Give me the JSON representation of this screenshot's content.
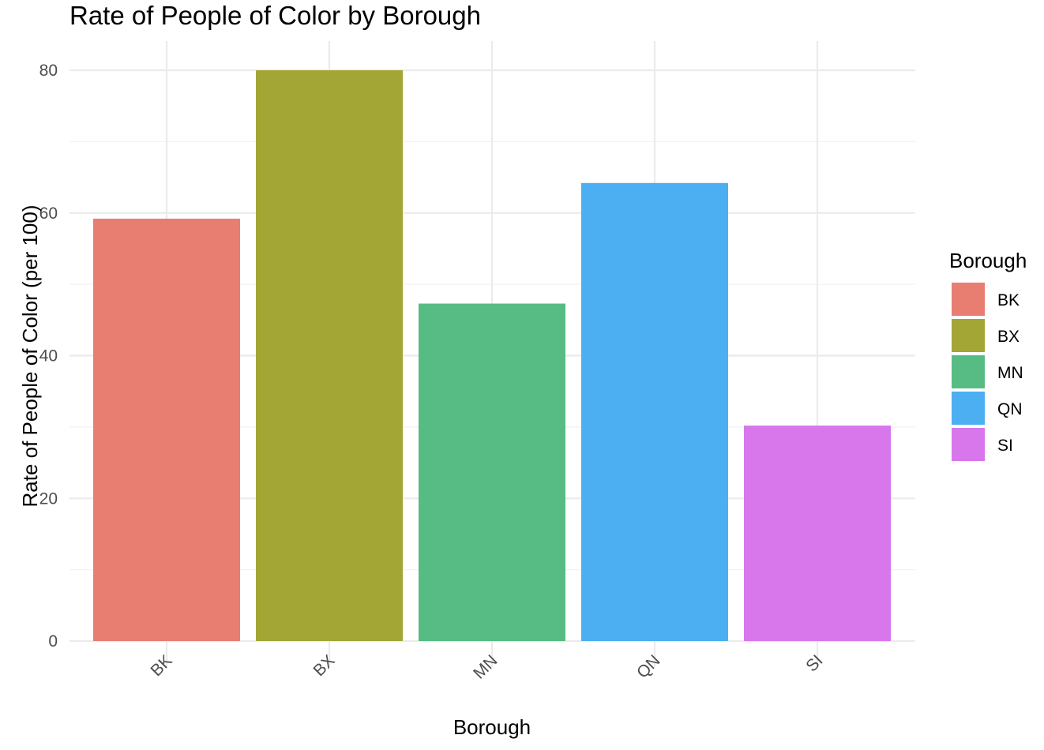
{
  "chart_data": {
    "type": "bar",
    "title": "Rate of People of Color by Borough",
    "xlabel": "Borough",
    "ylabel": "Rate of People of Color (per 100)",
    "categories": [
      "BK",
      "BX",
      "MN",
      "QN",
      "SI"
    ],
    "values": [
      59.2,
      80.0,
      47.3,
      64.2,
      30.2
    ],
    "colors": [
      "#E87D72",
      "#A3A535",
      "#56BC84",
      "#4BAFF1",
      "#D876EC"
    ],
    "ylim": [
      0,
      80
    ],
    "yticks": [
      0,
      20,
      40,
      60,
      80
    ],
    "grid": true,
    "legend": {
      "title": "Borough",
      "position": "right",
      "entries": [
        "BK",
        "BX",
        "MN",
        "QN",
        "SI"
      ]
    }
  }
}
